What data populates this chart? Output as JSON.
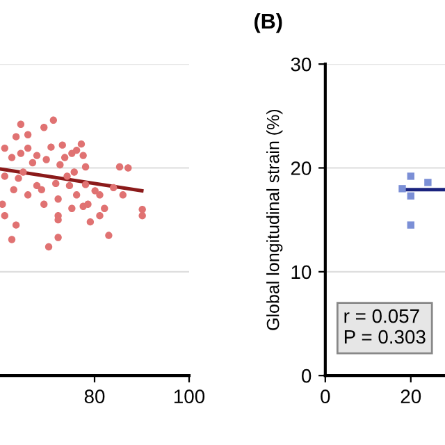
{
  "chart_data": [
    {
      "type": "scatter",
      "x": [
        64.4,
        71.3,
        69.3,
        65.9,
        63.4,
        73.2,
        77.2,
        77.6,
        75.2,
        65.9,
        61,
        62.5,
        66.9,
        69.8,
        72.7,
        75.7,
        78.1,
        85.3,
        87.1,
        61,
        63.9,
        67.8,
        71.8,
        74.7,
        78.1,
        80.1,
        84,
        86,
        81.1,
        62.9,
        65.9,
        69.3,
        72.3,
        76.2,
        60.5,
        61,
        72.3,
        75.2,
        77.6,
        78.6,
        81.1,
        82.1,
        79.1,
        72.3,
        90.1,
        90.1,
        63.4,
        62.5,
        72.3,
        70.3,
        83,
        64.4,
        67.8,
        70.8,
        73.7,
        76.2,
        64.9,
        68.8,
        74.2
      ],
      "series": [
        {
          "color": "#e07272",
          "marker": "circle",
          "values": [
            24.2,
            24.6,
            23.9,
            23.2,
            23.0,
            22.2,
            22.3,
            21.2,
            21.4,
            21.9,
            21.9,
            21.0,
            20.5,
            20.8,
            20.3,
            19.6,
            20.1,
            20.1,
            20.0,
            19.2,
            19.0,
            18.3,
            18.5,
            18.3,
            18.4,
            17.8,
            18.1,
            17.4,
            17.4,
            17.9,
            17.4,
            16.5,
            17.0,
            17.4,
            16.5,
            15.4,
            15.4,
            16.1,
            16.3,
            16.5,
            15.4,
            16.1,
            14.8,
            15.0,
            15.4,
            16.0,
            14.5,
            13.1,
            13.3,
            12.4,
            13.5,
            21.4,
            21.2,
            22.0,
            21.0,
            21.7,
            19.6,
            17.9,
            19.2
          ]
        },
        {
          "type": "line",
          "color": "#8b1a1a",
          "x": [
            60,
            90
          ],
          "values": [
            19.9,
            17.8
          ],
          "marker": "none",
          "line_style": "solid"
        }
      ],
      "xlim": [
        60,
        100
      ],
      "xticks": [
        80,
        100
      ],
      "ylim": [
        0,
        30
      ],
      "yticks": [
        0,
        10,
        20,
        30
      ],
      "tick_labels": "x",
      "grid": "y"
    },
    {
      "type": "scatter",
      "title": "(B)",
      "ylabel": "Global longitudinal strain (%)",
      "x": [
        18,
        20,
        20,
        20,
        24
      ],
      "series": [
        {
          "color": "#7b8fd6",
          "marker": "square",
          "values": [
            18.0,
            19.2,
            17.3,
            14.5,
            18.6
          ]
        },
        {
          "type": "line",
          "color": "#1a237e",
          "x": [
            18,
            28
          ],
          "values": [
            17.9,
            17.9
          ],
          "marker": "none",
          "line_style": "solid"
        }
      ],
      "xlim": [
        0,
        28
      ],
      "xticks": [
        0,
        20
      ],
      "ylim": [
        0,
        30
      ],
      "yticks": [
        0,
        10,
        20,
        30
      ],
      "grid": "y",
      "annotations": [
        "r = 0.057\nP = 0.303"
      ]
    }
  ]
}
